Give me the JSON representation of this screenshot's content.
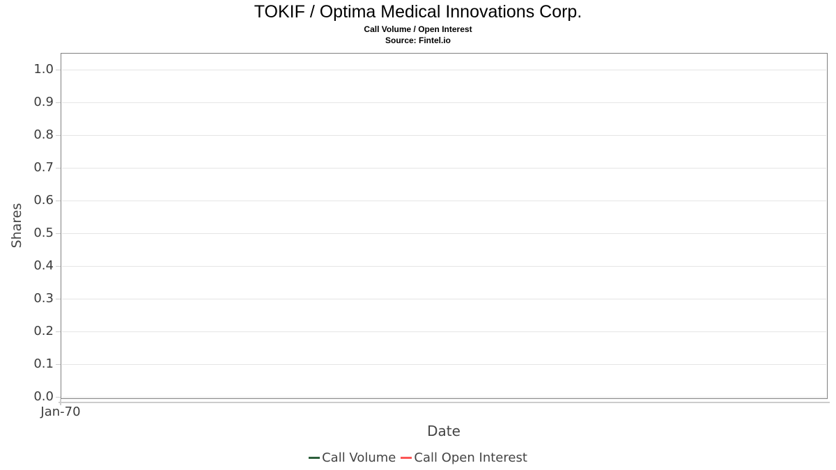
{
  "header": {
    "title": "TOKIF / Optima Medical Innovations Corp.",
    "subtitle": "Call Volume / Open Interest",
    "source": "Source: Fintel.io"
  },
  "axes": {
    "y_label": "Shares",
    "x_label": "Date",
    "y_ticks": [
      "1.0",
      "0.9",
      "0.8",
      "0.7",
      "0.6",
      "0.5",
      "0.4",
      "0.3",
      "0.2",
      "0.1",
      "0.0"
    ],
    "x_ticks": [
      "Jan-70"
    ]
  },
  "legend": {
    "items": [
      {
        "label": "Call Volume",
        "color": "#2d5f3b"
      },
      {
        "label": "Call Open Interest",
        "color": "#fc5656"
      }
    ]
  },
  "colors": {
    "title_text": "#000000",
    "plot_border": "#7f7f7f",
    "gridline": "#e5e5e5",
    "axis_line": "#cccccc",
    "tick_text": "#3c3c3c",
    "axis_title_text": "#444444",
    "legend_text": "#444444"
  },
  "chart_data": {
    "type": "line",
    "title": "TOKIF / Optima Medical Innovations Corp.",
    "subtitle": "Call Volume / Open Interest",
    "source": "Source: Fintel.io",
    "xlabel": "Date",
    "ylabel": "Shares",
    "ylim": [
      0.0,
      1.0
    ],
    "y_tick_step": 0.1,
    "x_tick_labels": [
      "Jan-70"
    ],
    "grid": "horizontal",
    "legend_position": "bottom",
    "series": [
      {
        "name": "Call Volume",
        "color": "#2d5f3b",
        "x": [],
        "values": []
      },
      {
        "name": "Call Open Interest",
        "color": "#fc5656",
        "x": [],
        "values": []
      }
    ]
  }
}
